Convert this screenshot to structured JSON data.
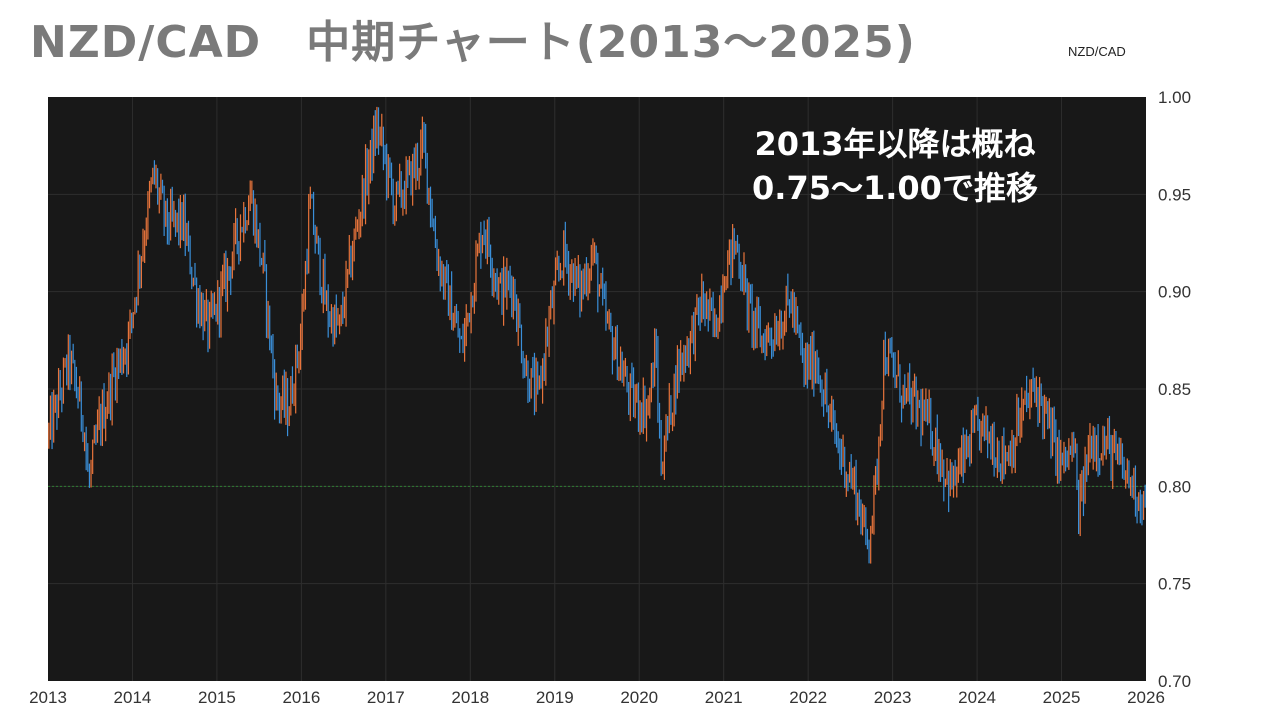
{
  "header": {
    "title": "NZD/CAD　中期チャート(2013～2025)",
    "pair_label": "NZD/CAD"
  },
  "colors": {
    "background": "#181818",
    "up": "#e8743b",
    "down": "#3a8fd9",
    "reference_line": "#2e7d32"
  },
  "chart_data": {
    "type": "ohlc",
    "title": "NZD/CAD　中期チャート(2013～2025)",
    "series": [
      {
        "name": "NZD/CAD"
      }
    ],
    "ylim": [
      0.7,
      1.0
    ],
    "xlim": [
      2013,
      2026
    ],
    "y_ticks": [
      "1.00",
      "0.95",
      "0.90",
      "0.85",
      "0.80",
      "0.75",
      "0.70"
    ],
    "x_ticks": [
      "2013",
      "2014",
      "2015",
      "2016",
      "2017",
      "2018",
      "2019",
      "2020",
      "2021",
      "2022",
      "2023",
      "2024",
      "2025",
      "2026"
    ],
    "reference_line": 0.8,
    "grid": true,
    "annotation": [
      "2013年以降は概ね",
      "0.75～1.00で推移"
    ],
    "path": [
      [
        2013.0,
        0.825
      ],
      [
        2013.25,
        0.865
      ],
      [
        2013.42,
        0.835
      ],
      [
        2013.48,
        0.8
      ],
      [
        2013.6,
        0.83
      ],
      [
        2013.8,
        0.86
      ],
      [
        2013.95,
        0.875
      ],
      [
        2014.1,
        0.92
      ],
      [
        2014.25,
        0.96
      ],
      [
        2014.4,
        0.935
      ],
      [
        2014.6,
        0.935
      ],
      [
        2014.75,
        0.9
      ],
      [
        2014.9,
        0.88
      ],
      [
        2015.1,
        0.905
      ],
      [
        2015.25,
        0.93
      ],
      [
        2015.4,
        0.95
      ],
      [
        2015.55,
        0.91
      ],
      [
        2015.7,
        0.845
      ],
      [
        2015.85,
        0.84
      ],
      [
        2016.0,
        0.88
      ],
      [
        2016.1,
        0.945
      ],
      [
        2016.3,
        0.89
      ],
      [
        2016.45,
        0.88
      ],
      [
        2016.6,
        0.92
      ],
      [
        2016.75,
        0.955
      ],
      [
        2016.9,
        0.985
      ],
      [
        2017.1,
        0.945
      ],
      [
        2017.25,
        0.955
      ],
      [
        2017.45,
        0.975
      ],
      [
        2017.6,
        0.92
      ],
      [
        2017.75,
        0.895
      ],
      [
        2017.9,
        0.87
      ],
      [
        2018.15,
        0.935
      ],
      [
        2018.35,
        0.9
      ],
      [
        2018.5,
        0.905
      ],
      [
        2018.65,
        0.86
      ],
      [
        2018.8,
        0.845
      ],
      [
        2018.95,
        0.89
      ],
      [
        2019.1,
        0.92
      ],
      [
        2019.3,
        0.9
      ],
      [
        2019.45,
        0.92
      ],
      [
        2019.6,
        0.885
      ],
      [
        2019.75,
        0.865
      ],
      [
        2019.9,
        0.845
      ],
      [
        2020.1,
        0.84
      ],
      [
        2020.2,
        0.87
      ],
      [
        2020.25,
        0.81
      ],
      [
        2020.45,
        0.86
      ],
      [
        2020.6,
        0.875
      ],
      [
        2020.75,
        0.895
      ],
      [
        2020.9,
        0.88
      ],
      [
        2021.0,
        0.91
      ],
      [
        2021.15,
        0.925
      ],
      [
        2021.3,
        0.89
      ],
      [
        2021.45,
        0.875
      ],
      [
        2021.6,
        0.88
      ],
      [
        2021.8,
        0.895
      ],
      [
        2021.95,
        0.86
      ],
      [
        2022.1,
        0.865
      ],
      [
        2022.25,
        0.835
      ],
      [
        2022.4,
        0.815
      ],
      [
        2022.55,
        0.8
      ],
      [
        2022.7,
        0.77
      ],
      [
        2022.8,
        0.8
      ],
      [
        2022.9,
        0.87
      ],
      [
        2023.0,
        0.86
      ],
      [
        2023.15,
        0.845
      ],
      [
        2023.3,
        0.84
      ],
      [
        2023.45,
        0.83
      ],
      [
        2023.6,
        0.81
      ],
      [
        2023.7,
        0.8
      ],
      [
        2023.85,
        0.815
      ],
      [
        2024.0,
        0.83
      ],
      [
        2024.15,
        0.825
      ],
      [
        2024.3,
        0.815
      ],
      [
        2024.4,
        0.82
      ],
      [
        2024.55,
        0.84
      ],
      [
        2024.7,
        0.85
      ],
      [
        2024.85,
        0.83
      ],
      [
        2025.0,
        0.81
      ],
      [
        2025.15,
        0.82
      ],
      [
        2025.2,
        0.785
      ],
      [
        2025.35,
        0.825
      ],
      [
        2025.55,
        0.82
      ],
      [
        2025.7,
        0.81
      ],
      [
        2025.85,
        0.8
      ],
      [
        2026.0,
        0.79
      ]
    ]
  }
}
